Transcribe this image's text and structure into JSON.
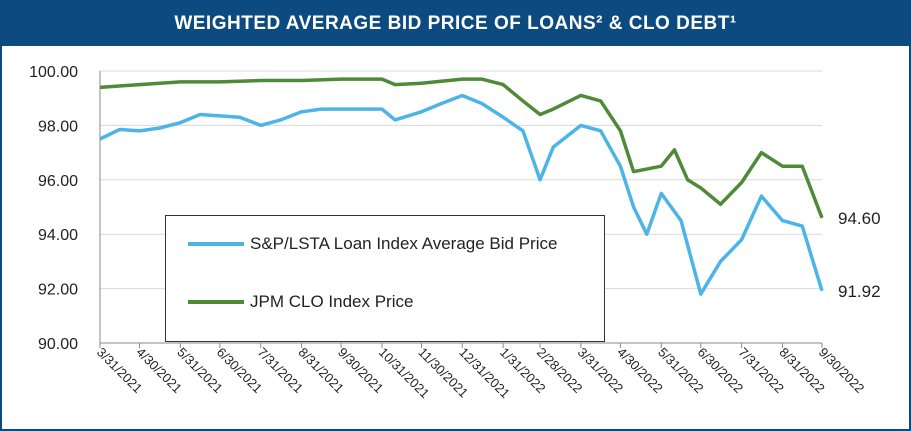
{
  "chart_data": {
    "type": "line",
    "title": "WEIGHTED AVERAGE BID PRICE OF LOANS² & CLO DEBT¹",
    "xlim": [
      "3/31/2021",
      "9/30/2022"
    ],
    "xticks": [
      "3/31/2021",
      "4/30/2021",
      "5/31/2021",
      "6/30/2021",
      "7/31/2021",
      "8/31/2021",
      "9/30/2021",
      "10/31/2021",
      "11/30/2021",
      "12/31/2021",
      "1/31/2022",
      "2/28/2022",
      "3/31/2022",
      "4/30/2022",
      "5/31/2022",
      "6/30/2022",
      "7/31/2022",
      "8/31/2022",
      "9/30/2022"
    ],
    "ylim": [
      90,
      100
    ],
    "yticks": [
      {
        "value": 90,
        "label": "90.00"
      },
      {
        "value": 92,
        "label": "92.00"
      },
      {
        "value": 94,
        "label": "94.00"
      },
      {
        "value": 96,
        "label": "96.00"
      },
      {
        "value": 98,
        "label": "98.00"
      },
      {
        "value": 100,
        "label": "100.00"
      }
    ],
    "grid": true,
    "series": [
      {
        "name": "S&P/LSTA Loan Index Average Bid Price",
        "color": "#4cb4e7",
        "end_label": "91.92",
        "x": [
          "3/31/2021",
          "4/15/2021",
          "4/30/2021",
          "5/15/2021",
          "5/31/2021",
          "6/15/2021",
          "6/30/2021",
          "7/15/2021",
          "7/31/2021",
          "8/15/2021",
          "8/31/2021",
          "9/15/2021",
          "9/30/2021",
          "10/15/2021",
          "10/31/2021",
          "11/10/2021",
          "11/30/2021",
          "12/15/2021",
          "12/31/2021",
          "1/15/2022",
          "1/31/2022",
          "2/15/2022",
          "2/28/2022",
          "3/10/2022",
          "3/31/2022",
          "4/15/2022",
          "4/30/2022",
          "5/10/2022",
          "5/20/2022",
          "5/31/2022",
          "6/15/2022",
          "6/30/2022",
          "7/15/2022",
          "7/31/2022",
          "8/15/2022",
          "8/31/2022",
          "9/15/2022",
          "9/30/2022"
        ],
        "values": [
          97.5,
          97.85,
          97.8,
          97.9,
          98.1,
          98.4,
          98.35,
          98.3,
          98.0,
          98.2,
          98.5,
          98.6,
          98.6,
          98.6,
          98.6,
          98.2,
          98.5,
          98.8,
          99.1,
          98.8,
          98.3,
          97.8,
          96.0,
          97.2,
          98.0,
          97.8,
          96.5,
          95.0,
          94.0,
          95.5,
          94.5,
          91.8,
          93.0,
          93.8,
          95.4,
          94.5,
          94.3,
          91.92
        ]
      },
      {
        "name": "JPM CLO Index Price",
        "color": "#4f8a38",
        "end_label": "94.60",
        "x": [
          "3/31/2021",
          "4/30/2021",
          "5/31/2021",
          "6/30/2021",
          "7/31/2021",
          "8/31/2021",
          "9/30/2021",
          "10/31/2021",
          "11/10/2021",
          "11/30/2021",
          "12/31/2021",
          "1/15/2022",
          "1/31/2022",
          "2/15/2022",
          "2/28/2022",
          "3/10/2022",
          "3/31/2022",
          "4/15/2022",
          "4/30/2022",
          "5/10/2022",
          "5/31/2022",
          "6/10/2022",
          "6/20/2022",
          "6/30/2022",
          "7/15/2022",
          "7/31/2022",
          "8/15/2022",
          "8/31/2022",
          "9/15/2022",
          "9/30/2022"
        ],
        "values": [
          99.4,
          99.5,
          99.6,
          99.6,
          99.65,
          99.65,
          99.7,
          99.7,
          99.5,
          99.55,
          99.7,
          99.7,
          99.5,
          98.9,
          98.4,
          98.6,
          99.1,
          98.9,
          97.8,
          96.3,
          96.5,
          97.1,
          96.0,
          95.7,
          95.1,
          95.9,
          97.0,
          96.5,
          96.5,
          94.6
        ]
      }
    ]
  }
}
